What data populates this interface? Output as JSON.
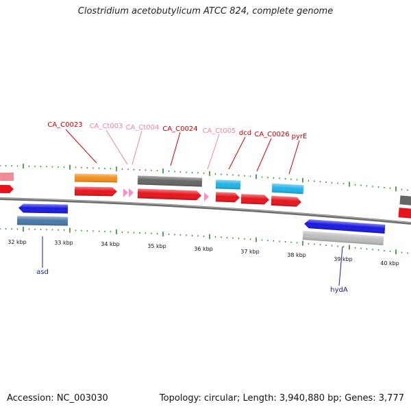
{
  "title": "Clostridium acetobutylicum ATCC 824, complete genome",
  "footer": {
    "accession": "Accession: NC_003030",
    "summary": "Topology: circular; Length: 3,940,880 bp; Genes: 3,777"
  },
  "colors": {
    "backbone": "#7a7a7a",
    "tick": "#2e8b2e",
    "cds": "#e8141c",
    "trna": "#ff8fc0",
    "orange": "#f5901e",
    "gray": "#6a6a6a",
    "cyan": "#1fb4e8",
    "pink": "#f08a94",
    "blue": "#1a1ae0",
    "steel": "#4a78a8",
    "silver": "#bdbdbd",
    "label_red": "#cc0000",
    "label_pink": "#f080b0",
    "label_blue": "#1a1aa0"
  },
  "kbp_labels": [
    "32 kbp",
    "33 kbp",
    "34 kbp",
    "35 kbp",
    "36 kbp",
    "37 kbp",
    "38 kbp",
    "39 kbp",
    "40 kbp"
  ],
  "gene_labels_top": [
    {
      "text": "CA_C0023",
      "tone": "red"
    },
    {
      "text": "CA_Ct003",
      "tone": "pink"
    },
    {
      "text": "CA_Ct004",
      "tone": "pink"
    },
    {
      "text": "CA_C0024",
      "tone": "red"
    },
    {
      "text": "CA_Ct005",
      "tone": "pink"
    },
    {
      "text": "dcd",
      "tone": "red"
    },
    {
      "text": "CA_C0026",
      "tone": "red"
    },
    {
      "text": "pyrE",
      "tone": "red"
    }
  ],
  "gene_labels_bottom": [
    {
      "text": "asd",
      "tone": "blue"
    },
    {
      "text": "hydA",
      "tone": "blue"
    }
  ]
}
